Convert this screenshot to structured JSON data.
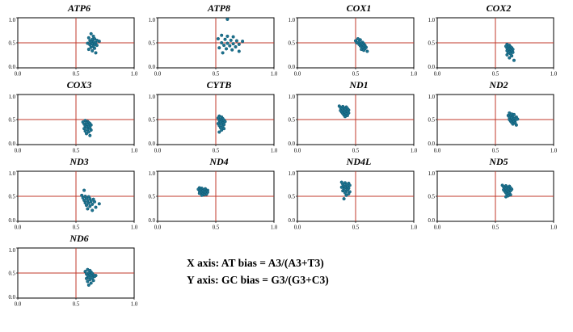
{
  "annotation": {
    "line1": "X axis: AT bias = A3/(A3+T3)",
    "line2": "Y axis: GC bias = G3/(G3+C3)"
  },
  "axis": {
    "xlim": [
      0,
      1
    ],
    "ylim": [
      0,
      1
    ],
    "ticks": [
      "0.0",
      "0.5",
      "1.0"
    ]
  },
  "colors": {
    "point_fill": "#1d7490",
    "point_stroke": "#0f5570",
    "crosshair": "#c0392b",
    "panel_border": "#000000"
  },
  "chart_data": [
    {
      "type": "scatter",
      "title": "ATP6",
      "xlabel": "AT bias",
      "ylabel": "GC bias",
      "xlim": [
        0,
        1
      ],
      "ylim": [
        0,
        1
      ],
      "points": [
        [
          0.63,
          0.68
        ],
        [
          0.65,
          0.63
        ],
        [
          0.61,
          0.6
        ],
        [
          0.66,
          0.58
        ],
        [
          0.64,
          0.57
        ],
        [
          0.68,
          0.55
        ],
        [
          0.62,
          0.54
        ],
        [
          0.7,
          0.53
        ],
        [
          0.65,
          0.52
        ],
        [
          0.63,
          0.51
        ],
        [
          0.67,
          0.5
        ],
        [
          0.6,
          0.49
        ],
        [
          0.64,
          0.48
        ],
        [
          0.66,
          0.47
        ],
        [
          0.62,
          0.46
        ],
        [
          0.68,
          0.45
        ],
        [
          0.65,
          0.43
        ],
        [
          0.63,
          0.41
        ],
        [
          0.66,
          0.39
        ],
        [
          0.61,
          0.37
        ],
        [
          0.64,
          0.34
        ],
        [
          0.67,
          0.3
        ]
      ]
    },
    {
      "type": "scatter",
      "title": "ATP8",
      "xlabel": "AT bias",
      "ylabel": "GC bias",
      "xlim": [
        0,
        1
      ],
      "ylim": [
        0,
        1
      ],
      "points": [
        [
          0.6,
          0.97
        ],
        [
          0.55,
          0.65
        ],
        [
          0.6,
          0.63
        ],
        [
          0.65,
          0.62
        ],
        [
          0.52,
          0.58
        ],
        [
          0.58,
          0.57
        ],
        [
          0.63,
          0.55
        ],
        [
          0.68,
          0.54
        ],
        [
          0.73,
          0.53
        ],
        [
          0.55,
          0.5
        ],
        [
          0.6,
          0.49
        ],
        [
          0.65,
          0.48
        ],
        [
          0.7,
          0.47
        ],
        [
          0.57,
          0.45
        ],
        [
          0.62,
          0.44
        ],
        [
          0.67,
          0.42
        ],
        [
          0.53,
          0.4
        ],
        [
          0.59,
          0.38
        ],
        [
          0.64,
          0.36
        ],
        [
          0.7,
          0.33
        ],
        [
          0.56,
          0.3
        ]
      ]
    },
    {
      "type": "scatter",
      "title": "COX1",
      "xlabel": "AT bias",
      "ylabel": "GC bias",
      "xlim": [
        0,
        1
      ],
      "ylim": [
        0,
        1
      ],
      "points": [
        [
          0.52,
          0.58
        ],
        [
          0.54,
          0.56
        ],
        [
          0.5,
          0.54
        ],
        [
          0.53,
          0.52
        ],
        [
          0.56,
          0.51
        ],
        [
          0.51,
          0.5
        ],
        [
          0.55,
          0.49
        ],
        [
          0.57,
          0.48
        ],
        [
          0.53,
          0.47
        ],
        [
          0.56,
          0.46
        ],
        [
          0.58,
          0.45
        ],
        [
          0.54,
          0.44
        ],
        [
          0.57,
          0.43
        ],
        [
          0.55,
          0.42
        ],
        [
          0.59,
          0.41
        ],
        [
          0.56,
          0.4
        ],
        [
          0.58,
          0.38
        ],
        [
          0.55,
          0.37
        ],
        [
          0.57,
          0.35
        ],
        [
          0.6,
          0.33
        ]
      ]
    },
    {
      "type": "scatter",
      "title": "COX2",
      "xlabel": "AT bias",
      "ylabel": "GC bias",
      "xlim": [
        0,
        1
      ],
      "ylim": [
        0,
        1
      ],
      "points": [
        [
          0.6,
          0.47
        ],
        [
          0.62,
          0.45
        ],
        [
          0.59,
          0.43
        ],
        [
          0.63,
          0.42
        ],
        [
          0.61,
          0.41
        ],
        [
          0.64,
          0.4
        ],
        [
          0.6,
          0.39
        ],
        [
          0.62,
          0.38
        ],
        [
          0.65,
          0.37
        ],
        [
          0.61,
          0.36
        ],
        [
          0.63,
          0.35
        ],
        [
          0.6,
          0.34
        ],
        [
          0.64,
          0.33
        ],
        [
          0.62,
          0.32
        ],
        [
          0.65,
          0.31
        ],
        [
          0.61,
          0.3
        ],
        [
          0.63,
          0.28
        ],
        [
          0.6,
          0.26
        ],
        [
          0.64,
          0.24
        ],
        [
          0.62,
          0.2
        ],
        [
          0.66,
          0.15
        ]
      ]
    },
    {
      "type": "scatter",
      "title": "COX3",
      "xlabel": "AT bias",
      "ylabel": "GC bias",
      "xlim": [
        0,
        1
      ],
      "ylim": [
        0,
        1
      ],
      "points": [
        [
          0.58,
          0.48
        ],
        [
          0.6,
          0.46
        ],
        [
          0.56,
          0.45
        ],
        [
          0.61,
          0.44
        ],
        [
          0.59,
          0.43
        ],
        [
          0.62,
          0.42
        ],
        [
          0.57,
          0.41
        ],
        [
          0.6,
          0.4
        ],
        [
          0.63,
          0.39
        ],
        [
          0.58,
          0.37
        ],
        [
          0.61,
          0.36
        ],
        [
          0.59,
          0.35
        ],
        [
          0.62,
          0.33
        ],
        [
          0.57,
          0.32
        ],
        [
          0.6,
          0.3
        ],
        [
          0.63,
          0.29
        ],
        [
          0.58,
          0.27
        ],
        [
          0.61,
          0.25
        ],
        [
          0.59,
          0.22
        ],
        [
          0.62,
          0.18
        ]
      ]
    },
    {
      "type": "scatter",
      "title": "CYTB",
      "xlabel": "AT bias",
      "ylabel": "GC bias",
      "xlim": [
        0,
        1
      ],
      "ylim": [
        0,
        1
      ],
      "points": [
        [
          0.53,
          0.57
        ],
        [
          0.55,
          0.55
        ],
        [
          0.52,
          0.53
        ],
        [
          0.56,
          0.52
        ],
        [
          0.54,
          0.5
        ],
        [
          0.57,
          0.49
        ],
        [
          0.53,
          0.48
        ],
        [
          0.55,
          0.47
        ],
        [
          0.58,
          0.46
        ],
        [
          0.54,
          0.45
        ],
        [
          0.56,
          0.43
        ],
        [
          0.52,
          0.42
        ],
        [
          0.55,
          0.41
        ],
        [
          0.57,
          0.4
        ],
        [
          0.53,
          0.38
        ],
        [
          0.56,
          0.36
        ],
        [
          0.54,
          0.34
        ],
        [
          0.57,
          0.32
        ],
        [
          0.55,
          0.29
        ],
        [
          0.53,
          0.25
        ]
      ]
    },
    {
      "type": "scatter",
      "title": "ND1",
      "xlabel": "AT bias",
      "ylabel": "GC bias",
      "xlim": [
        0,
        1
      ],
      "ylim": [
        0,
        1
      ],
      "points": [
        [
          0.36,
          0.77
        ],
        [
          0.39,
          0.76
        ],
        [
          0.42,
          0.75
        ],
        [
          0.37,
          0.74
        ],
        [
          0.4,
          0.73
        ],
        [
          0.43,
          0.72
        ],
        [
          0.38,
          0.71
        ],
        [
          0.41,
          0.7
        ],
        [
          0.44,
          0.69
        ],
        [
          0.37,
          0.68
        ],
        [
          0.4,
          0.67
        ],
        [
          0.43,
          0.66
        ],
        [
          0.38,
          0.65
        ],
        [
          0.41,
          0.64
        ],
        [
          0.44,
          0.63
        ],
        [
          0.39,
          0.62
        ],
        [
          0.42,
          0.61
        ],
        [
          0.4,
          0.59
        ],
        [
          0.43,
          0.58
        ],
        [
          0.41,
          0.56
        ]
      ]
    },
    {
      "type": "scatter",
      "title": "ND2",
      "xlabel": "AT bias",
      "ylabel": "GC bias",
      "xlim": [
        0,
        1
      ],
      "ylim": [
        0,
        1
      ],
      "points": [
        [
          0.62,
          0.63
        ],
        [
          0.64,
          0.61
        ],
        [
          0.66,
          0.6
        ],
        [
          0.61,
          0.58
        ],
        [
          0.63,
          0.57
        ],
        [
          0.65,
          0.56
        ],
        [
          0.68,
          0.55
        ],
        [
          0.62,
          0.54
        ],
        [
          0.64,
          0.53
        ],
        [
          0.66,
          0.52
        ],
        [
          0.69,
          0.51
        ],
        [
          0.62,
          0.5
        ],
        [
          0.65,
          0.49
        ],
        [
          0.67,
          0.48
        ],
        [
          0.63,
          0.47
        ],
        [
          0.66,
          0.46
        ],
        [
          0.64,
          0.44
        ],
        [
          0.67,
          0.43
        ],
        [
          0.65,
          0.41
        ],
        [
          0.68,
          0.39
        ]
      ]
    },
    {
      "type": "scatter",
      "title": "ND3",
      "xlabel": "AT bias",
      "ylabel": "GC bias",
      "xlim": [
        0,
        1
      ],
      "ylim": [
        0,
        1
      ],
      "points": [
        [
          0.57,
          0.62
        ],
        [
          0.55,
          0.52
        ],
        [
          0.58,
          0.5
        ],
        [
          0.61,
          0.49
        ],
        [
          0.56,
          0.47
        ],
        [
          0.59,
          0.46
        ],
        [
          0.62,
          0.45
        ],
        [
          0.65,
          0.44
        ],
        [
          0.57,
          0.42
        ],
        [
          0.6,
          0.41
        ],
        [
          0.63,
          0.4
        ],
        [
          0.66,
          0.39
        ],
        [
          0.58,
          0.37
        ],
        [
          0.61,
          0.36
        ],
        [
          0.64,
          0.34
        ],
        [
          0.7,
          0.35
        ],
        [
          0.59,
          0.32
        ],
        [
          0.62,
          0.3
        ],
        [
          0.67,
          0.28
        ],
        [
          0.6,
          0.25
        ],
        [
          0.64,
          0.22
        ]
      ]
    },
    {
      "type": "scatter",
      "title": "ND4",
      "xlabel": "AT bias",
      "ylabel": "GC bias",
      "xlim": [
        0,
        1
      ],
      "ylim": [
        0,
        1
      ],
      "points": [
        [
          0.36,
          0.67
        ],
        [
          0.38,
          0.66
        ],
        [
          0.41,
          0.65
        ],
        [
          0.35,
          0.64
        ],
        [
          0.37,
          0.63
        ],
        [
          0.4,
          0.63
        ],
        [
          0.43,
          0.62
        ],
        [
          0.36,
          0.61
        ],
        [
          0.39,
          0.61
        ],
        [
          0.42,
          0.6
        ],
        [
          0.37,
          0.59
        ],
        [
          0.4,
          0.59
        ],
        [
          0.43,
          0.58
        ],
        [
          0.38,
          0.57
        ],
        [
          0.41,
          0.57
        ],
        [
          0.36,
          0.56
        ],
        [
          0.39,
          0.55
        ],
        [
          0.42,
          0.54
        ],
        [
          0.4,
          0.53
        ],
        [
          0.38,
          0.52
        ]
      ]
    },
    {
      "type": "scatter",
      "title": "ND4L",
      "xlabel": "AT bias",
      "ylabel": "GC bias",
      "xlim": [
        0,
        1
      ],
      "ylim": [
        0,
        1
      ],
      "points": [
        [
          0.38,
          0.78
        ],
        [
          0.41,
          0.77
        ],
        [
          0.44,
          0.76
        ],
        [
          0.39,
          0.74
        ],
        [
          0.42,
          0.73
        ],
        [
          0.45,
          0.72
        ],
        [
          0.4,
          0.7
        ],
        [
          0.43,
          0.69
        ],
        [
          0.38,
          0.68
        ],
        [
          0.41,
          0.67
        ],
        [
          0.44,
          0.66
        ],
        [
          0.4,
          0.64
        ],
        [
          0.43,
          0.63
        ],
        [
          0.39,
          0.61
        ],
        [
          0.42,
          0.6
        ],
        [
          0.45,
          0.59
        ],
        [
          0.41,
          0.57
        ],
        [
          0.44,
          0.55
        ],
        [
          0.42,
          0.52
        ],
        [
          0.4,
          0.45
        ]
      ]
    },
    {
      "type": "scatter",
      "title": "ND5",
      "xlabel": "AT bias",
      "ylabel": "GC bias",
      "xlim": [
        0,
        1
      ],
      "ylim": [
        0,
        1
      ],
      "points": [
        [
          0.56,
          0.72
        ],
        [
          0.59,
          0.71
        ],
        [
          0.62,
          0.7
        ],
        [
          0.57,
          0.69
        ],
        [
          0.6,
          0.68
        ],
        [
          0.63,
          0.67
        ],
        [
          0.58,
          0.66
        ],
        [
          0.61,
          0.65
        ],
        [
          0.64,
          0.64
        ],
        [
          0.57,
          0.63
        ],
        [
          0.6,
          0.62
        ],
        [
          0.63,
          0.61
        ],
        [
          0.58,
          0.6
        ],
        [
          0.61,
          0.59
        ],
        [
          0.59,
          0.57
        ],
        [
          0.62,
          0.56
        ],
        [
          0.6,
          0.54
        ],
        [
          0.63,
          0.53
        ],
        [
          0.61,
          0.51
        ],
        [
          0.59,
          0.49
        ]
      ]
    },
    {
      "type": "scatter",
      "title": "ND6",
      "xlabel": "AT bias",
      "ylabel": "GC bias",
      "xlim": [
        0,
        1
      ],
      "ylim": [
        0,
        1
      ],
      "points": [
        [
          0.6,
          0.57
        ],
        [
          0.62,
          0.55
        ],
        [
          0.58,
          0.53
        ],
        [
          0.63,
          0.52
        ],
        [
          0.61,
          0.5
        ],
        [
          0.64,
          0.49
        ],
        [
          0.59,
          0.48
        ],
        [
          0.62,
          0.47
        ],
        [
          0.65,
          0.46
        ],
        [
          0.67,
          0.45
        ],
        [
          0.6,
          0.45
        ],
        [
          0.63,
          0.44
        ],
        [
          0.66,
          0.43
        ],
        [
          0.61,
          0.41
        ],
        [
          0.64,
          0.4
        ],
        [
          0.59,
          0.39
        ],
        [
          0.62,
          0.37
        ],
        [
          0.65,
          0.35
        ],
        [
          0.6,
          0.33
        ],
        [
          0.63,
          0.3
        ],
        [
          0.61,
          0.26
        ]
      ]
    }
  ]
}
